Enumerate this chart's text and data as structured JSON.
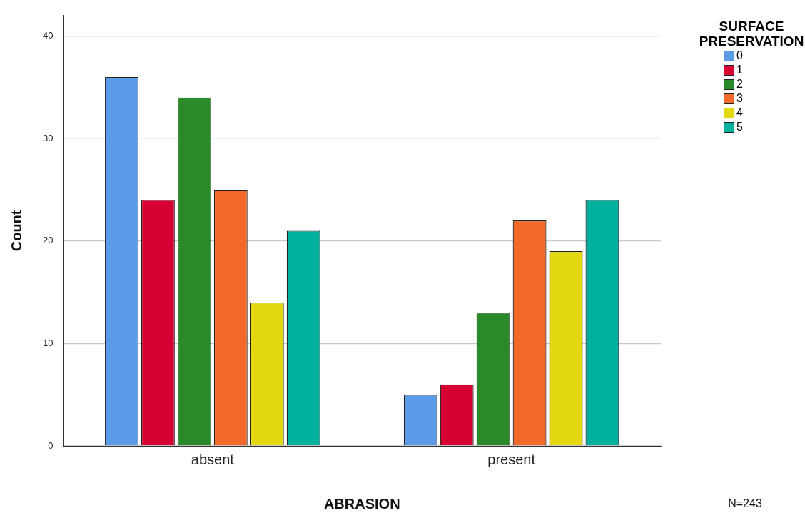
{
  "chart_data": {
    "type": "bar",
    "xlabel": "ABRASION",
    "ylabel": "Count",
    "legend_title": "SURFACE PRESERVATION",
    "categories": [
      "absent",
      "present"
    ],
    "series": [
      {
        "name": "0",
        "color": "#5b9ae6",
        "values": [
          36,
          5
        ]
      },
      {
        "name": "1",
        "color": "#d60032",
        "values": [
          24,
          6
        ]
      },
      {
        "name": "2",
        "color": "#2a8a2a",
        "values": [
          34,
          13
        ]
      },
      {
        "name": "3",
        "color": "#f2692a",
        "values": [
          25,
          22
        ]
      },
      {
        "name": "4",
        "color": "#e3d80f",
        "values": [
          14,
          19
        ]
      },
      {
        "name": "5",
        "color": "#00b09e",
        "values": [
          21,
          24
        ]
      }
    ],
    "ylim": [
      0,
      42
    ],
    "yticks": [
      0,
      10,
      20,
      30,
      40
    ],
    "grid": "y",
    "legend": "top right",
    "annotations": [
      "N=243"
    ]
  }
}
